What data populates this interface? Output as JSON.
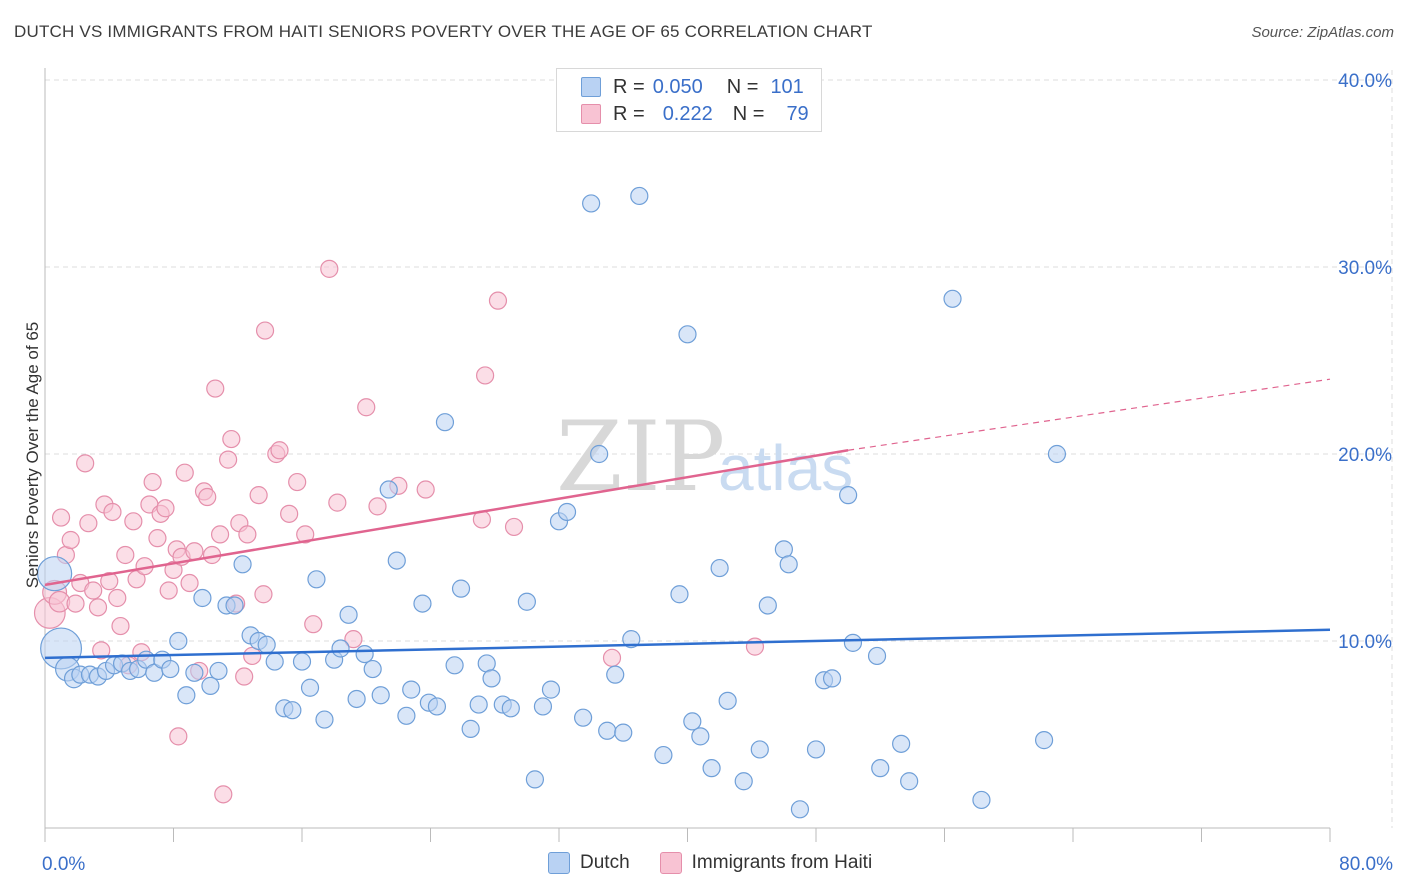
{
  "title": "DUTCH VS IMMIGRANTS FROM HAITI SENIORS POVERTY OVER THE AGE OF 65 CORRELATION CHART",
  "source": "Source: ZipAtlas.com",
  "watermark": {
    "zip": "ZIP",
    "atlas": "atlas"
  },
  "colors": {
    "dutch_fill": "#b9d2f3",
    "dutch_stroke": "#6f9fd8",
    "dutch_line": "#2f6fcf",
    "haiti_fill": "#f8c3d3",
    "haiti_stroke": "#e58fab",
    "haiti_line": "#e0648f",
    "axis_text": "#3a6fc9",
    "grid": "#dddddd"
  },
  "stats_legend": {
    "dutch": {
      "r_label": "R =",
      "r_value": "0.050",
      "n_label": "N =",
      "n_value": "101"
    },
    "haiti": {
      "r_label": "R =",
      "r_value": "0.222",
      "n_label": "N =",
      "n_value": "79"
    }
  },
  "legend": {
    "dutch": "Dutch",
    "haiti": "Immigrants from Haiti"
  },
  "chart_data": {
    "type": "scatter",
    "title": "DUTCH VS IMMIGRANTS FROM HAITI SENIORS POVERTY OVER THE AGE OF 65 CORRELATION CHART",
    "xlabel": "",
    "ylabel": "Seniors Poverty Over the Age of 65",
    "xlim": [
      0,
      80
    ],
    "ylim": [
      0,
      40
    ],
    "x_tick_labels": [
      "0.0%",
      "80.0%"
    ],
    "y_ticks": [
      10,
      20,
      30,
      40
    ],
    "y_tick_labels": [
      "10.0%",
      "20.0%",
      "30.0%",
      "40.0%"
    ],
    "grid": true,
    "legend_position": "bottom",
    "series": [
      {
        "name": "Dutch",
        "trend": {
          "x": [
            0,
            80
          ],
          "y": [
            9.1,
            10.6
          ]
        },
        "points": [
          {
            "x": 0.6,
            "y": 13.6,
            "s": 2.0
          },
          {
            "x": 1.0,
            "y": 9.6,
            "s": 2.4
          },
          {
            "x": 1.4,
            "y": 8.5,
            "s": 1.4
          },
          {
            "x": 1.8,
            "y": 8.0,
            "s": 1.1
          },
          {
            "x": 2.2,
            "y": 8.2,
            "s": 1.0
          },
          {
            "x": 2.8,
            "y": 8.2,
            "s": 1.0
          },
          {
            "x": 3.3,
            "y": 8.1,
            "s": 1.0
          },
          {
            "x": 3.8,
            "y": 8.4,
            "s": 1.0
          },
          {
            "x": 4.3,
            "y": 8.7,
            "s": 1.0
          },
          {
            "x": 4.8,
            "y": 8.8,
            "s": 1.0
          },
          {
            "x": 5.3,
            "y": 8.4,
            "s": 1.0
          },
          {
            "x": 5.8,
            "y": 8.5,
            "s": 1.0
          },
          {
            "x": 6.3,
            "y": 9.0,
            "s": 1.0
          },
          {
            "x": 6.8,
            "y": 8.3,
            "s": 1.0
          },
          {
            "x": 7.3,
            "y": 9.0,
            "s": 1.0
          },
          {
            "x": 7.8,
            "y": 8.5,
            "s": 1.0
          },
          {
            "x": 8.3,
            "y": 10.0,
            "s": 1.0
          },
          {
            "x": 8.8,
            "y": 7.1,
            "s": 1.0
          },
          {
            "x": 9.3,
            "y": 8.3,
            "s": 1.0
          },
          {
            "x": 9.8,
            "y": 12.3,
            "s": 1.0
          },
          {
            "x": 10.3,
            "y": 7.6,
            "s": 1.0
          },
          {
            "x": 10.8,
            "y": 8.4,
            "s": 1.0
          },
          {
            "x": 11.3,
            "y": 11.9,
            "s": 1.0
          },
          {
            "x": 11.8,
            "y": 11.9,
            "s": 1.0
          },
          {
            "x": 12.3,
            "y": 14.1,
            "s": 1.0
          },
          {
            "x": 12.8,
            "y": 10.3,
            "s": 1.0
          },
          {
            "x": 13.3,
            "y": 10.0,
            "s": 1.0
          },
          {
            "x": 13.8,
            "y": 9.8,
            "s": 1.0
          },
          {
            "x": 14.3,
            "y": 8.9,
            "s": 1.0
          },
          {
            "x": 14.9,
            "y": 6.4,
            "s": 1.0
          },
          {
            "x": 15.4,
            "y": 6.3,
            "s": 1.0
          },
          {
            "x": 16.0,
            "y": 8.9,
            "s": 1.0
          },
          {
            "x": 16.5,
            "y": 7.5,
            "s": 1.0
          },
          {
            "x": 16.9,
            "y": 13.3,
            "s": 1.0
          },
          {
            "x": 17.4,
            "y": 5.8,
            "s": 1.0
          },
          {
            "x": 18.0,
            "y": 9.0,
            "s": 1.0
          },
          {
            "x": 18.4,
            "y": 9.6,
            "s": 1.0
          },
          {
            "x": 18.9,
            "y": 11.4,
            "s": 1.0
          },
          {
            "x": 19.4,
            "y": 6.9,
            "s": 1.0
          },
          {
            "x": 19.9,
            "y": 9.3,
            "s": 1.0
          },
          {
            "x": 20.4,
            "y": 8.5,
            "s": 1.0
          },
          {
            "x": 20.9,
            "y": 7.1,
            "s": 1.0
          },
          {
            "x": 21.4,
            "y": 18.1,
            "s": 1.0
          },
          {
            "x": 21.9,
            "y": 14.3,
            "s": 1.0
          },
          {
            "x": 22.5,
            "y": 6.0,
            "s": 1.0
          },
          {
            "x": 22.8,
            "y": 7.4,
            "s": 1.0
          },
          {
            "x": 23.5,
            "y": 12.0,
            "s": 1.0
          },
          {
            "x": 23.9,
            "y": 6.7,
            "s": 1.0
          },
          {
            "x": 24.4,
            "y": 6.5,
            "s": 1.0
          },
          {
            "x": 24.9,
            "y": 21.7,
            "s": 1.0
          },
          {
            "x": 25.5,
            "y": 8.7,
            "s": 1.0
          },
          {
            "x": 25.9,
            "y": 12.8,
            "s": 1.0
          },
          {
            "x": 26.5,
            "y": 5.3,
            "s": 1.0
          },
          {
            "x": 27.0,
            "y": 6.6,
            "s": 1.0
          },
          {
            "x": 27.5,
            "y": 8.8,
            "s": 1.0
          },
          {
            "x": 27.8,
            "y": 8.0,
            "s": 1.0
          },
          {
            "x": 28.5,
            "y": 6.6,
            "s": 1.0
          },
          {
            "x": 29.0,
            "y": 6.4,
            "s": 1.0
          },
          {
            "x": 30.0,
            "y": 12.1,
            "s": 1.0
          },
          {
            "x": 30.5,
            "y": 2.6,
            "s": 1.0
          },
          {
            "x": 31.0,
            "y": 6.5,
            "s": 1.0
          },
          {
            "x": 31.5,
            "y": 7.4,
            "s": 1.0
          },
          {
            "x": 32.0,
            "y": 16.4,
            "s": 1.0
          },
          {
            "x": 32.5,
            "y": 16.9,
            "s": 1.0
          },
          {
            "x": 33.5,
            "y": 5.9,
            "s": 1.0
          },
          {
            "x": 34.0,
            "y": 33.4,
            "s": 1.0
          },
          {
            "x": 34.5,
            "y": 20.0,
            "s": 1.0
          },
          {
            "x": 35.0,
            "y": 5.2,
            "s": 1.0
          },
          {
            "x": 35.5,
            "y": 8.2,
            "s": 1.0
          },
          {
            "x": 36.0,
            "y": 5.1,
            "s": 1.0
          },
          {
            "x": 36.5,
            "y": 10.1,
            "s": 1.0
          },
          {
            "x": 37.0,
            "y": 33.8,
            "s": 1.0
          },
          {
            "x": 38.5,
            "y": 3.9,
            "s": 1.0
          },
          {
            "x": 39.5,
            "y": 12.5,
            "s": 1.0
          },
          {
            "x": 40.0,
            "y": 26.4,
            "s": 1.0
          },
          {
            "x": 40.3,
            "y": 5.7,
            "s": 1.0
          },
          {
            "x": 40.8,
            "y": 4.9,
            "s": 1.0
          },
          {
            "x": 41.5,
            "y": 3.2,
            "s": 1.0
          },
          {
            "x": 42.0,
            "y": 13.9,
            "s": 1.0
          },
          {
            "x": 42.5,
            "y": 6.8,
            "s": 1.0
          },
          {
            "x": 43.5,
            "y": 2.5,
            "s": 1.0
          },
          {
            "x": 44.5,
            "y": 4.2,
            "s": 1.0
          },
          {
            "x": 45.0,
            "y": 11.9,
            "s": 1.0
          },
          {
            "x": 46.0,
            "y": 14.9,
            "s": 1.0
          },
          {
            "x": 46.3,
            "y": 14.1,
            "s": 1.0
          },
          {
            "x": 47.0,
            "y": 1.0,
            "s": 1.0
          },
          {
            "x": 48.0,
            "y": 4.2,
            "s": 1.0
          },
          {
            "x": 48.5,
            "y": 7.9,
            "s": 1.0
          },
          {
            "x": 49.0,
            "y": 8.0,
            "s": 1.0
          },
          {
            "x": 50.0,
            "y": 17.8,
            "s": 1.0
          },
          {
            "x": 50.3,
            "y": 9.9,
            "s": 1.0
          },
          {
            "x": 51.8,
            "y": 9.2,
            "s": 1.0
          },
          {
            "x": 52.0,
            "y": 3.2,
            "s": 1.0
          },
          {
            "x": 53.3,
            "y": 4.5,
            "s": 1.0
          },
          {
            "x": 53.8,
            "y": 2.5,
            "s": 1.0
          },
          {
            "x": 56.5,
            "y": 28.3,
            "s": 1.0
          },
          {
            "x": 58.3,
            "y": 1.5,
            "s": 1.0
          },
          {
            "x": 62.2,
            "y": 4.7,
            "s": 1.0
          },
          {
            "x": 63.0,
            "y": 20.0,
            "s": 1.0
          }
        ]
      },
      {
        "name": "Immigrants from Haiti",
        "trend": {
          "x": [
            0,
            50
          ],
          "y": [
            13.0,
            20.2
          ]
        },
        "trend_extension": {
          "x": [
            50,
            80
          ],
          "y": [
            20.2,
            24.0
          ]
        },
        "points": [
          {
            "x": 0.3,
            "y": 11.5,
            "s": 1.8
          },
          {
            "x": 0.6,
            "y": 12.6,
            "s": 1.4
          },
          {
            "x": 0.9,
            "y": 12.1,
            "s": 1.2
          },
          {
            "x": 1.0,
            "y": 16.6,
            "s": 1.0
          },
          {
            "x": 1.3,
            "y": 14.6,
            "s": 1.0
          },
          {
            "x": 1.6,
            "y": 15.4,
            "s": 1.0
          },
          {
            "x": 1.9,
            "y": 12.0,
            "s": 1.0
          },
          {
            "x": 2.2,
            "y": 13.1,
            "s": 1.0
          },
          {
            "x": 2.5,
            "y": 19.5,
            "s": 1.0
          },
          {
            "x": 2.7,
            "y": 16.3,
            "s": 1.0
          },
          {
            "x": 3.0,
            "y": 12.7,
            "s": 1.0
          },
          {
            "x": 3.3,
            "y": 11.8,
            "s": 1.0
          },
          {
            "x": 3.5,
            "y": 9.5,
            "s": 1.0
          },
          {
            "x": 3.7,
            "y": 17.3,
            "s": 1.0
          },
          {
            "x": 4.0,
            "y": 13.2,
            "s": 1.0
          },
          {
            "x": 4.2,
            "y": 16.9,
            "s": 1.0
          },
          {
            "x": 4.5,
            "y": 12.3,
            "s": 1.0
          },
          {
            "x": 4.7,
            "y": 10.8,
            "s": 1.0
          },
          {
            "x": 5.0,
            "y": 14.6,
            "s": 1.0
          },
          {
            "x": 5.2,
            "y": 8.7,
            "s": 1.0
          },
          {
            "x": 5.5,
            "y": 16.4,
            "s": 1.0
          },
          {
            "x": 5.7,
            "y": 13.3,
            "s": 1.0
          },
          {
            "x": 6.0,
            "y": 9.4,
            "s": 1.0
          },
          {
            "x": 6.2,
            "y": 14.0,
            "s": 1.0
          },
          {
            "x": 6.5,
            "y": 17.3,
            "s": 1.0
          },
          {
            "x": 6.7,
            "y": 18.5,
            "s": 1.0
          },
          {
            "x": 7.0,
            "y": 15.5,
            "s": 1.0
          },
          {
            "x": 7.2,
            "y": 16.8,
            "s": 1.0
          },
          {
            "x": 7.5,
            "y": 17.1,
            "s": 1.0
          },
          {
            "x": 7.7,
            "y": 12.7,
            "s": 1.0
          },
          {
            "x": 8.0,
            "y": 13.8,
            "s": 1.0
          },
          {
            "x": 8.2,
            "y": 14.9,
            "s": 1.0
          },
          {
            "x": 8.5,
            "y": 14.5,
            "s": 1.0
          },
          {
            "x": 8.3,
            "y": 4.9,
            "s": 1.0
          },
          {
            "x": 8.7,
            "y": 19.0,
            "s": 1.0
          },
          {
            "x": 9.0,
            "y": 13.1,
            "s": 1.0
          },
          {
            "x": 9.3,
            "y": 14.8,
            "s": 1.0
          },
          {
            "x": 9.6,
            "y": 8.4,
            "s": 1.0
          },
          {
            "x": 9.9,
            "y": 18.0,
            "s": 1.0
          },
          {
            "x": 10.1,
            "y": 17.7,
            "s": 1.0
          },
          {
            "x": 10.4,
            "y": 14.6,
            "s": 1.0
          },
          {
            "x": 10.6,
            "y": 23.5,
            "s": 1.0
          },
          {
            "x": 10.9,
            "y": 15.7,
            "s": 1.0
          },
          {
            "x": 11.1,
            "y": 1.8,
            "s": 1.0
          },
          {
            "x": 11.4,
            "y": 19.7,
            "s": 1.0
          },
          {
            "x": 11.6,
            "y": 20.8,
            "s": 1.0
          },
          {
            "x": 11.9,
            "y": 12.0,
            "s": 1.0
          },
          {
            "x": 12.1,
            "y": 16.3,
            "s": 1.0
          },
          {
            "x": 12.4,
            "y": 8.1,
            "s": 1.0
          },
          {
            "x": 12.6,
            "y": 15.7,
            "s": 1.0
          },
          {
            "x": 12.9,
            "y": 9.2,
            "s": 1.0
          },
          {
            "x": 13.3,
            "y": 17.8,
            "s": 1.0
          },
          {
            "x": 13.6,
            "y": 12.5,
            "s": 1.0
          },
          {
            "x": 13.7,
            "y": 26.6,
            "s": 1.0
          },
          {
            "x": 14.4,
            "y": 20.0,
            "s": 1.0
          },
          {
            "x": 14.6,
            "y": 20.2,
            "s": 1.0
          },
          {
            "x": 15.2,
            "y": 16.8,
            "s": 1.0
          },
          {
            "x": 15.7,
            "y": 18.5,
            "s": 1.0
          },
          {
            "x": 16.2,
            "y": 15.7,
            "s": 1.0
          },
          {
            "x": 16.7,
            "y": 10.9,
            "s": 1.0
          },
          {
            "x": 17.7,
            "y": 29.9,
            "s": 1.0
          },
          {
            "x": 18.2,
            "y": 17.4,
            "s": 1.0
          },
          {
            "x": 19.2,
            "y": 10.1,
            "s": 1.0
          },
          {
            "x": 20.0,
            "y": 22.5,
            "s": 1.0
          },
          {
            "x": 20.7,
            "y": 17.2,
            "s": 1.0
          },
          {
            "x": 22.0,
            "y": 18.3,
            "s": 1.0
          },
          {
            "x": 23.7,
            "y": 18.1,
            "s": 1.0
          },
          {
            "x": 27.2,
            "y": 16.5,
            "s": 1.0
          },
          {
            "x": 27.4,
            "y": 24.2,
            "s": 1.0
          },
          {
            "x": 28.2,
            "y": 28.2,
            "s": 1.0
          },
          {
            "x": 29.2,
            "y": 16.1,
            "s": 1.0
          },
          {
            "x": 35.3,
            "y": 9.1,
            "s": 1.0
          },
          {
            "x": 44.2,
            "y": 9.7,
            "s": 1.0
          }
        ]
      }
    ]
  }
}
